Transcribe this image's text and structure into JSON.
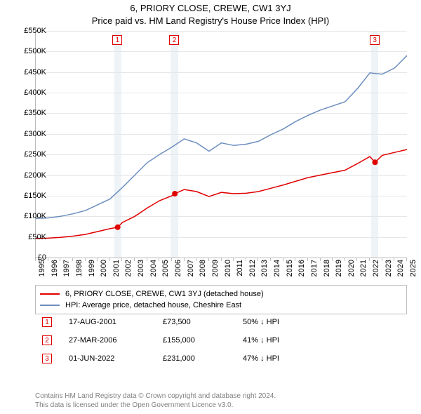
{
  "title": "6, PRIORY CLOSE, CREWE, CW1 3YJ",
  "subtitle": "Price paid vs. HM Land Registry's House Price Index (HPI)",
  "chart": {
    "type": "line",
    "background_color": "#ffffff",
    "grid_color": "#e6e6e6",
    "axis_color": "#bdbdbd",
    "x_years_start": 1995,
    "x_years_end": 2025,
    "x_tick_step": 1,
    "ylim_min": 0,
    "ylim_max": 550000,
    "y_tick_values": [
      0,
      50000,
      100000,
      150000,
      200000,
      250000,
      300000,
      350000,
      400000,
      450000,
      500000,
      550000
    ],
    "y_tick_labels": [
      "£0",
      "£50K",
      "£100K",
      "£150K",
      "£200K",
      "£250K",
      "£300K",
      "£350K",
      "£400K",
      "£450K",
      "£500K",
      "£550K"
    ],
    "x_tick_fontsize": 11,
    "y_tick_fontsize": 11,
    "bands": [
      {
        "start": 2001.35,
        "end": 2001.9,
        "color": "#eef3f7"
      },
      {
        "start": 2005.9,
        "end": 2006.5,
        "color": "#eef3f7"
      },
      {
        "start": 2022.1,
        "end": 2022.7,
        "color": "#eef3f7"
      }
    ],
    "marker_boxes": [
      {
        "n": "1",
        "year": 2001.6,
        "color": "#e00000"
      },
      {
        "n": "2",
        "year": 2006.2,
        "color": "#e00000"
      },
      {
        "n": "3",
        "year": 2022.4,
        "color": "#e00000"
      }
    ],
    "series": [
      {
        "name": "hpi",
        "label": "HPI: Average price, detached house, Cheshire East",
        "color": "#6c8ebf",
        "width": 1.5,
        "data": [
          [
            1995,
            95000
          ],
          [
            1996,
            96000
          ],
          [
            1997,
            100000
          ],
          [
            1998,
            106000
          ],
          [
            1999,
            114000
          ],
          [
            2000,
            128000
          ],
          [
            2001,
            142000
          ],
          [
            2002,
            170000
          ],
          [
            2003,
            200000
          ],
          [
            2004,
            230000
          ],
          [
            2005,
            250000
          ],
          [
            2006,
            268000
          ],
          [
            2007,
            288000
          ],
          [
            2008,
            278000
          ],
          [
            2009,
            258000
          ],
          [
            2010,
            278000
          ],
          [
            2011,
            272000
          ],
          [
            2012,
            275000
          ],
          [
            2013,
            282000
          ],
          [
            2014,
            298000
          ],
          [
            2015,
            312000
          ],
          [
            2016,
            330000
          ],
          [
            2017,
            345000
          ],
          [
            2018,
            358000
          ],
          [
            2019,
            368000
          ],
          [
            2020,
            378000
          ],
          [
            2021,
            410000
          ],
          [
            2022,
            448000
          ],
          [
            2023,
            445000
          ],
          [
            2024,
            460000
          ],
          [
            2025,
            490000
          ]
        ]
      },
      {
        "name": "price_paid",
        "label": "6, PRIORY CLOSE, CREWE, CW1 3YJ (detached house)",
        "color": "#e00000",
        "width": 1.5,
        "data": [
          [
            1995,
            46000
          ],
          [
            1996,
            47000
          ],
          [
            1997,
            49000
          ],
          [
            1998,
            52000
          ],
          [
            1999,
            56000
          ],
          [
            2000,
            63000
          ],
          [
            2001,
            70000
          ],
          [
            2001.62,
            73500
          ],
          [
            2002,
            85000
          ],
          [
            2003,
            100000
          ],
          [
            2004,
            120000
          ],
          [
            2005,
            138000
          ],
          [
            2006,
            150000
          ],
          [
            2006.24,
            155000
          ],
          [
            2007,
            165000
          ],
          [
            2008,
            160000
          ],
          [
            2009,
            148000
          ],
          [
            2010,
            158000
          ],
          [
            2011,
            155000
          ],
          [
            2012,
            156000
          ],
          [
            2013,
            160000
          ],
          [
            2014,
            168000
          ],
          [
            2015,
            176000
          ],
          [
            2016,
            185000
          ],
          [
            2017,
            194000
          ],
          [
            2018,
            200000
          ],
          [
            2019,
            206000
          ],
          [
            2020,
            212000
          ],
          [
            2021,
            228000
          ],
          [
            2022,
            245000
          ],
          [
            2022.42,
            231000
          ],
          [
            2023,
            248000
          ],
          [
            2024,
            255000
          ],
          [
            2025,
            262000
          ]
        ]
      }
    ],
    "marker_dots": [
      {
        "year": 2001.62,
        "value": 73500,
        "color": "#e00000"
      },
      {
        "year": 2006.24,
        "value": 155000,
        "color": "#e00000"
      },
      {
        "year": 2022.42,
        "value": 231000,
        "color": "#e00000"
      }
    ]
  },
  "legend": {
    "rows": [
      {
        "color": "#e00000",
        "label": "6, PRIORY CLOSE, CREWE, CW1 3YJ (detached house)"
      },
      {
        "color": "#6c8ebf",
        "label": "HPI: Average price, detached house, Cheshire East"
      }
    ]
  },
  "sales": [
    {
      "n": "1",
      "date": "17-AUG-2001",
      "price": "£73,500",
      "hpi": "50% ↓ HPI"
    },
    {
      "n": "2",
      "date": "27-MAR-2006",
      "price": "£155,000",
      "hpi": "41% ↓ HPI"
    },
    {
      "n": "3",
      "date": "01-JUN-2022",
      "price": "£231,000",
      "hpi": "47% ↓ HPI"
    }
  ],
  "footer": {
    "line1": "Contains HM Land Registry data © Crown copyright and database right 2024.",
    "line2": "This data is licensed under the Open Government Licence v3.0."
  }
}
